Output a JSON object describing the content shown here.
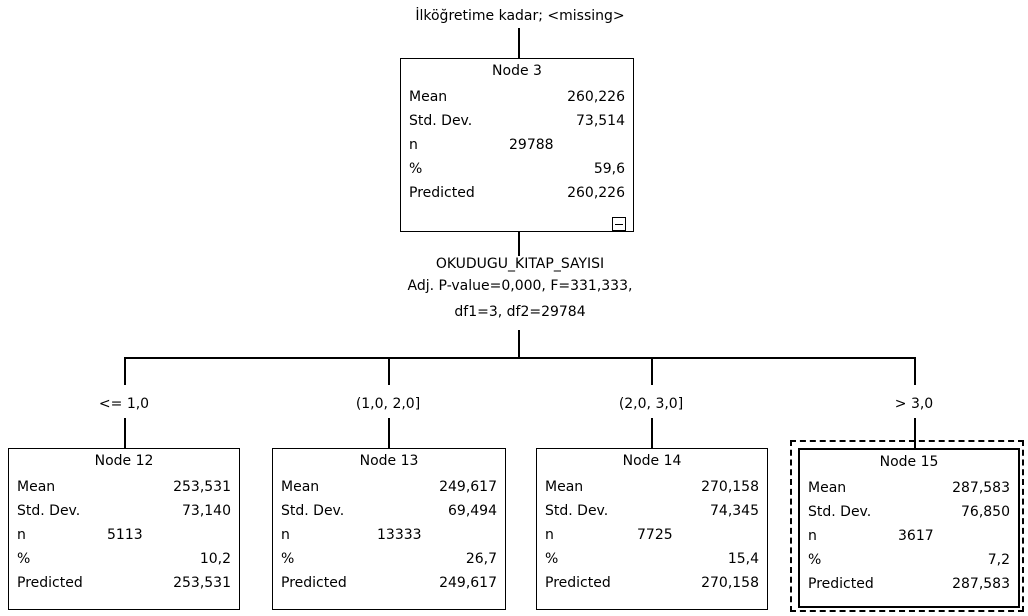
{
  "parent_branch_label": "İlköğretime kadar; <missing>",
  "root": {
    "title": "Node 3",
    "rows": [
      {
        "label": "Mean",
        "value": "260,226"
      },
      {
        "label": "Std. Dev.",
        "value": "73,514"
      },
      {
        "label": "n",
        "value": "29788"
      },
      {
        "label": "%",
        "value": "59,6"
      },
      {
        "label": "Predicted",
        "value": "260,226"
      }
    ]
  },
  "split": {
    "variable": "OKUDUGU_KITAP_SAYISI",
    "stats": "Adj. P-value=0,000, F=331,333,",
    "df": "df1=3, df2=29784"
  },
  "branches": [
    "<= 1,0",
    "(1,0, 2,0]",
    "(2,0, 3,0]",
    "> 3,0"
  ],
  "children": [
    {
      "title": "Node 12",
      "rows": [
        {
          "label": "Mean",
          "value": "253,531"
        },
        {
          "label": "Std. Dev.",
          "value": "73,140"
        },
        {
          "label": "n",
          "value": "5113"
        },
        {
          "label": "%",
          "value": "10,2"
        },
        {
          "label": "Predicted",
          "value": "253,531"
        }
      ]
    },
    {
      "title": "Node 13",
      "rows": [
        {
          "label": "Mean",
          "value": "249,617"
        },
        {
          "label": "Std. Dev.",
          "value": "69,494"
        },
        {
          "label": "n",
          "value": "13333"
        },
        {
          "label": "%",
          "value": "26,7"
        },
        {
          "label": "Predicted",
          "value": "249,617"
        }
      ]
    },
    {
      "title": "Node 14",
      "rows": [
        {
          "label": "Mean",
          "value": "270,158"
        },
        {
          "label": "Std. Dev.",
          "value": "74,345"
        },
        {
          "label": "n",
          "value": "7725"
        },
        {
          "label": "%",
          "value": "15,4"
        },
        {
          "label": "Predicted",
          "value": "270,158"
        }
      ]
    },
    {
      "title": "Node 15",
      "rows": [
        {
          "label": "Mean",
          "value": "287,583"
        },
        {
          "label": "Std. Dev.",
          "value": "76,850"
        },
        {
          "label": "n",
          "value": "3617"
        },
        {
          "label": "%",
          "value": "7,2"
        },
        {
          "label": "Predicted",
          "value": "287,583"
        }
      ]
    }
  ]
}
